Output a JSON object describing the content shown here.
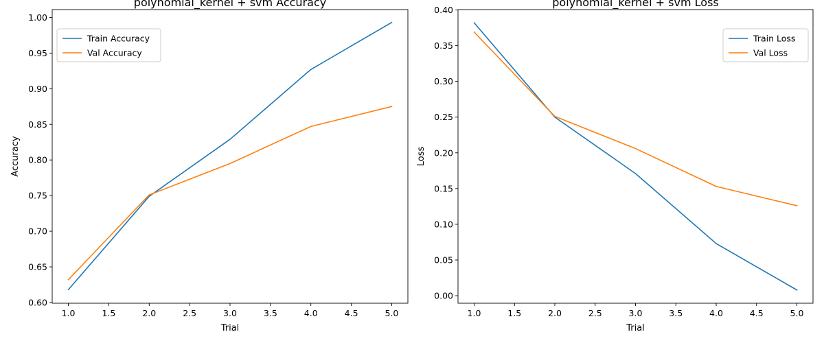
{
  "chart_data": [
    {
      "type": "line",
      "title": "polynomial_kernel + svm Accuracy",
      "xlabel": "Trial",
      "ylabel": "Accuracy",
      "x": [
        1,
        2,
        3,
        4,
        5
      ],
      "xlim": [
        0.8,
        5.2
      ],
      "ylim": [
        0.599,
        1.011
      ],
      "xticks": [
        1.0,
        1.5,
        2.0,
        2.5,
        3.0,
        3.5,
        4.0,
        4.5,
        5.0
      ],
      "yticks": [
        0.6,
        0.65,
        0.7,
        0.75,
        0.8,
        0.85,
        0.9,
        0.95,
        1.0
      ],
      "tick_decimals": {
        "x": 1,
        "y": 2
      },
      "legend_position": "upper-left",
      "grid": false,
      "series": [
        {
          "name": "Train Accuracy",
          "color": "#1f77b4",
          "values": [
            0.618,
            0.749,
            0.829,
            0.927,
            0.993
          ]
        },
        {
          "name": "Val Accuracy",
          "color": "#ff7f0e",
          "values": [
            0.632,
            0.751,
            0.795,
            0.847,
            0.875
          ]
        }
      ]
    },
    {
      "type": "line",
      "title": "polynomial_kernel + svm Loss",
      "xlabel": "Trial",
      "ylabel": "Loss",
      "x": [
        1,
        2,
        3,
        4,
        5
      ],
      "xlim": [
        0.8,
        5.2
      ],
      "ylim": [
        -0.0105,
        0.4005
      ],
      "xticks": [
        1.0,
        1.5,
        2.0,
        2.5,
        3.0,
        3.5,
        4.0,
        4.5,
        5.0
      ],
      "yticks": [
        0.0,
        0.05,
        0.1,
        0.15,
        0.2,
        0.25,
        0.3,
        0.35,
        0.4
      ],
      "tick_decimals": {
        "x": 1,
        "y": 2
      },
      "legend_position": "upper-right",
      "grid": false,
      "series": [
        {
          "name": "Train Loss",
          "color": "#1f77b4",
          "values": [
            0.382,
            0.25,
            0.171,
            0.073,
            0.008
          ]
        },
        {
          "name": "Val Loss",
          "color": "#ff7f0e",
          "values": [
            0.369,
            0.251,
            0.206,
            0.153,
            0.126
          ]
        }
      ]
    }
  ]
}
